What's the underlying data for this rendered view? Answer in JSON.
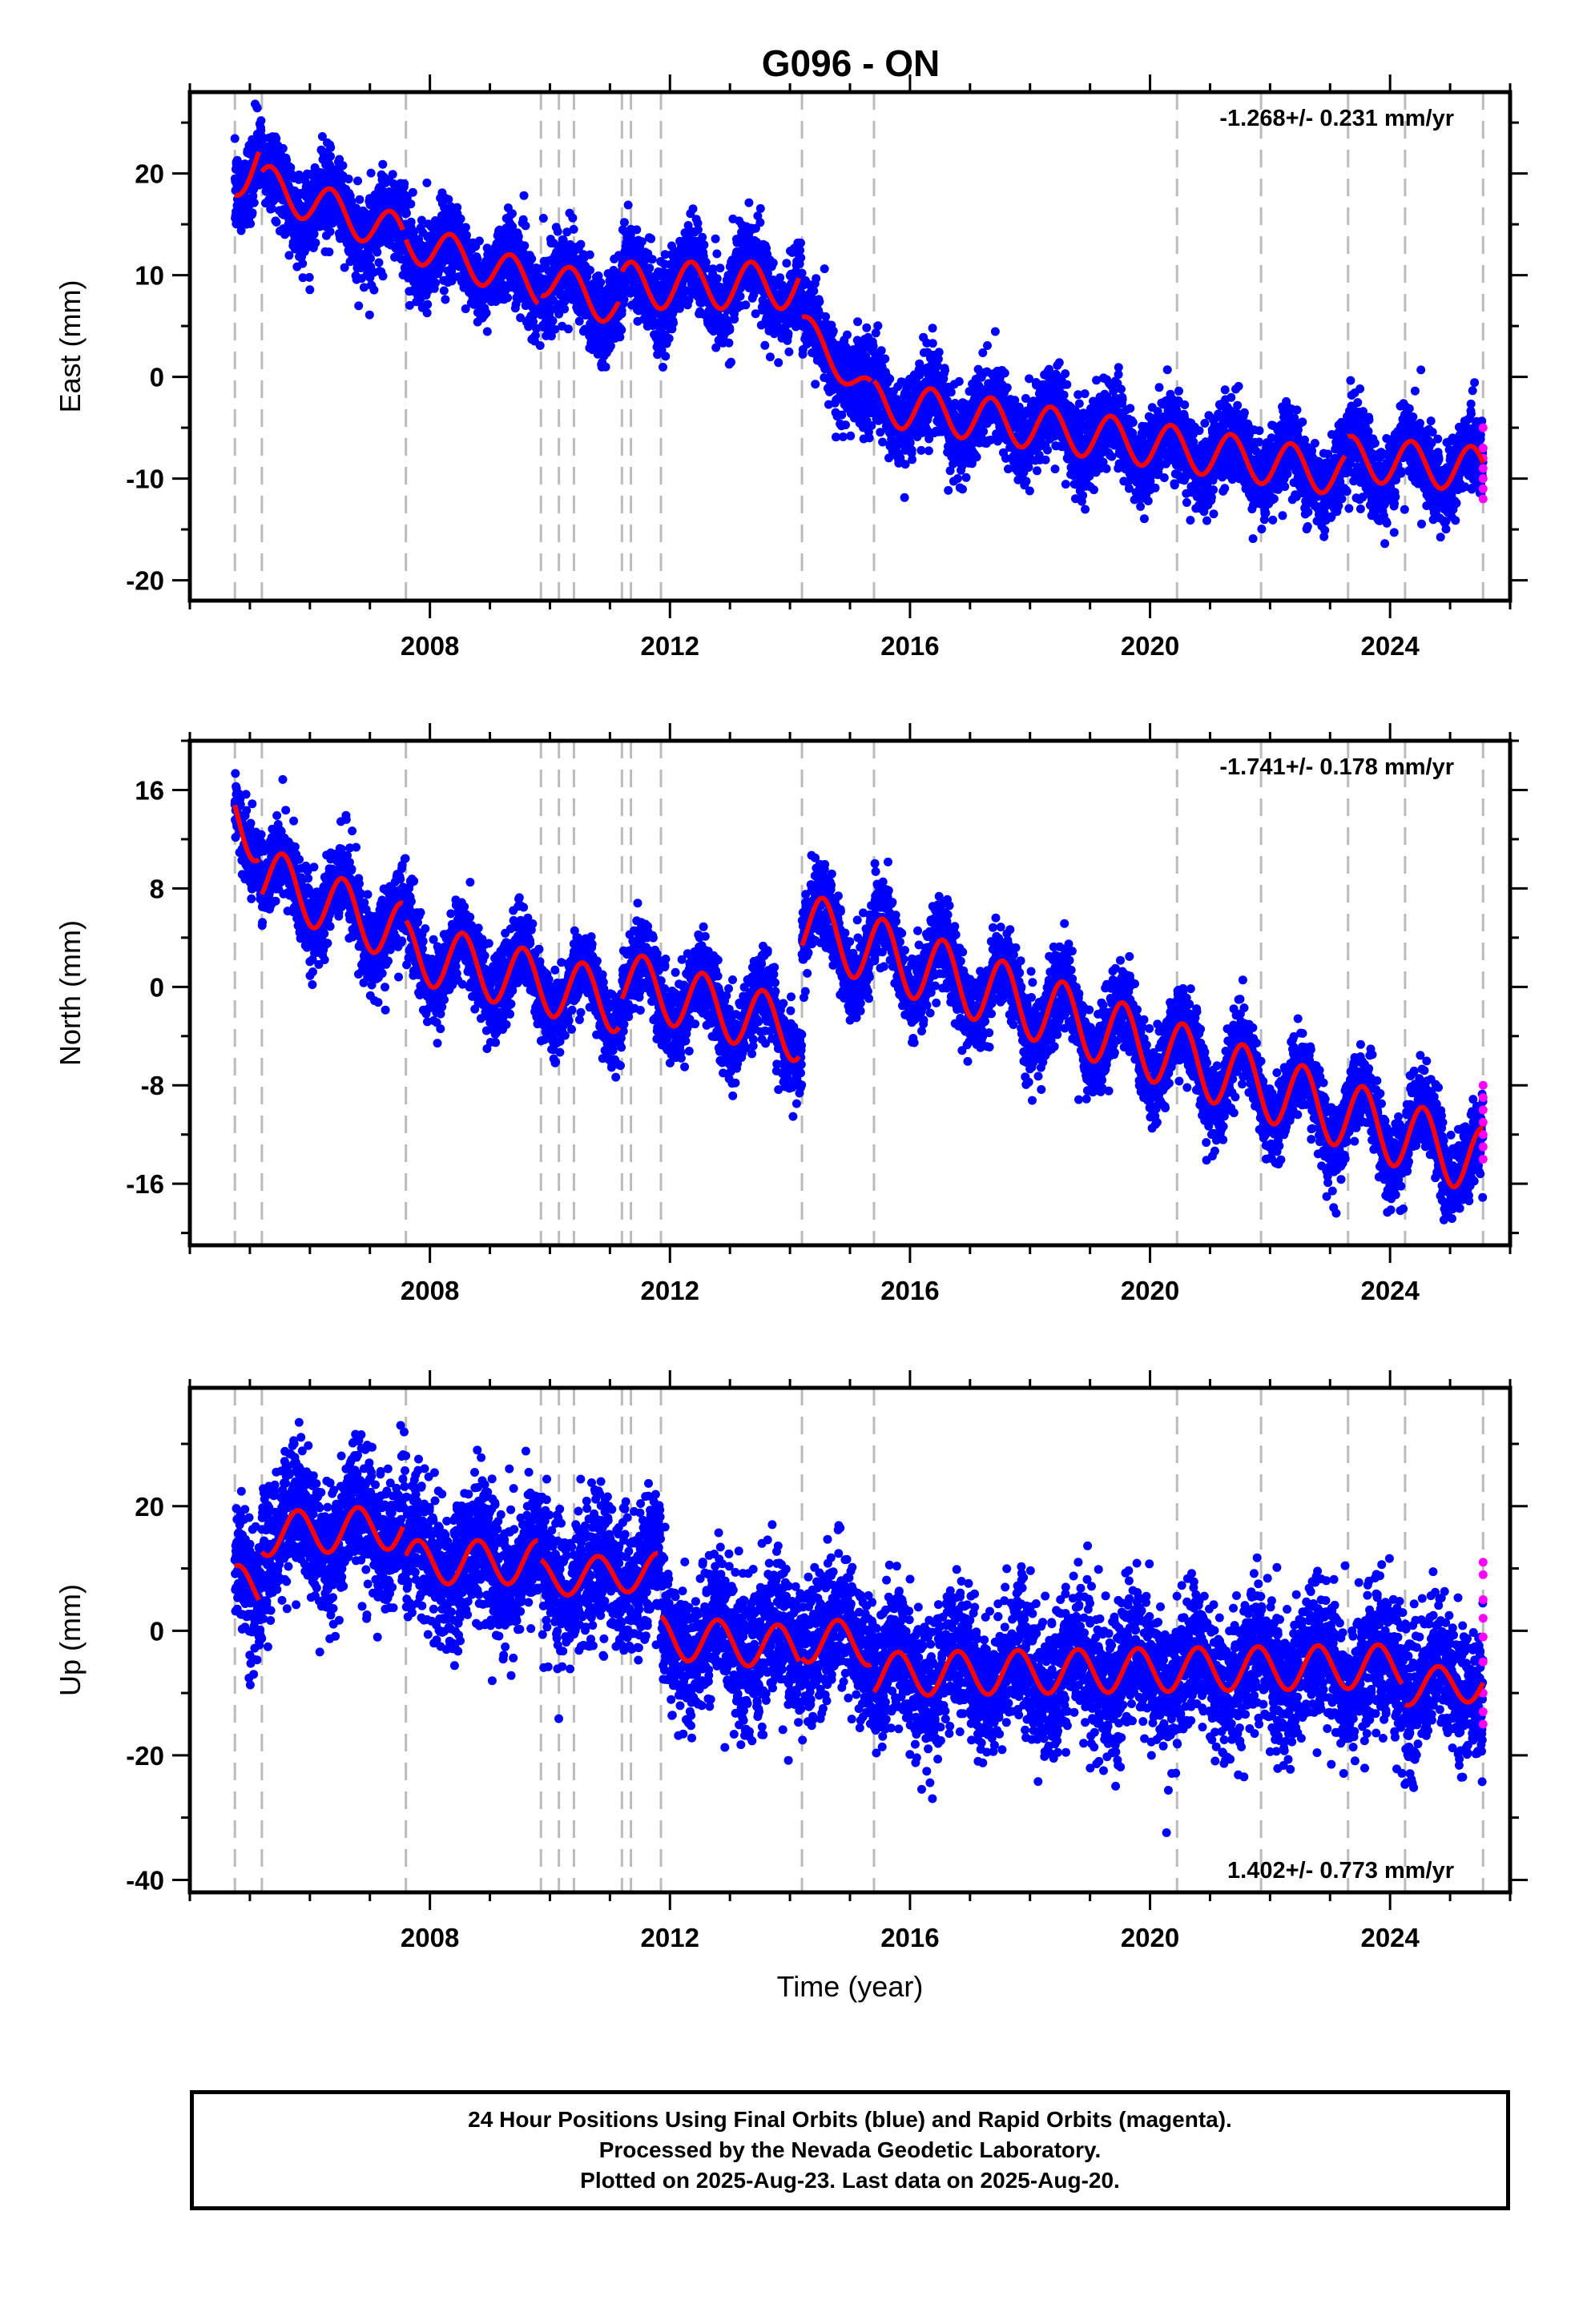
{
  "title": "G096 - ON",
  "colors": {
    "final_orbits": "#0000ff",
    "rapid_orbits": "#ff00ff",
    "model": "#ff0000",
    "event_lines": "#bbbbbb"
  },
  "chart_data": [
    {
      "type": "scatter",
      "component": "east",
      "ylabel": "East (mm)",
      "xlabel": "",
      "xlim": [
        2004.0,
        2026.0
      ],
      "ylim": [
        -22,
        28
      ],
      "xticks": [
        2008,
        2012,
        2016,
        2020,
        2024
      ],
      "yticks": [
        -20,
        -10,
        0,
        10,
        20
      ],
      "rate_label": "-1.268+/- 0.231 mm/yr",
      "rate_position": "top-right",
      "event_lines": [
        2004.75,
        2005.2,
        2007.6,
        2009.85,
        2010.15,
        2010.4,
        2011.2,
        2011.35,
        2011.85,
        2014.2,
        2015.4,
        2020.45,
        2021.85,
        2023.3,
        2024.25,
        2025.55
      ],
      "model": {
        "segments": [
          {
            "t0": 2004.75,
            "t1": 2005.15,
            "offset": 19.5,
            "trend": 5.0,
            "amp": 2.0,
            "phase": 0.1
          },
          {
            "t0": 2005.2,
            "t1": 2007.55,
            "offset": 19.0,
            "trend": -2.2,
            "amp": 2.0,
            "phase": 0.1
          },
          {
            "t0": 2007.6,
            "t1": 2009.8,
            "offset": 13.5,
            "trend": -2.0,
            "amp": 2.0,
            "phase": 0.1
          },
          {
            "t0": 2009.85,
            "t1": 2011.15,
            "offset": 10.0,
            "trend": -2.5,
            "amp": 2.0,
            "phase": 0.1
          },
          {
            "t0": 2011.2,
            "t1": 2014.15,
            "offset": 9.0,
            "trend": 0.0,
            "amp": 2.3,
            "phase": 0.1
          },
          {
            "t0": 2014.2,
            "t1": 2015.35,
            "offset": 5.0,
            "trend": -6.0,
            "amp": 1.5,
            "phase": 0.1
          },
          {
            "t0": 2015.4,
            "t1": 2023.25,
            "offset": -2.5,
            "trend": -0.9,
            "amp": 2.2,
            "phase": 0.1
          },
          {
            "t0": 2023.3,
            "t1": 2025.55,
            "offset": -8.0,
            "trend": -0.5,
            "amp": 2.2,
            "phase": 0.1
          }
        ]
      },
      "scatter_noise_mm": 2.0,
      "scatter_outlier_fraction": 0.01,
      "rapid_points": {
        "t": 2025.55,
        "values": [
          -5,
          -7,
          -8,
          -9,
          -10,
          -11,
          -12
        ]
      }
    },
    {
      "type": "scatter",
      "component": "north",
      "ylabel": "North (mm)",
      "xlabel": "",
      "xlim": [
        2004.0,
        2026.0
      ],
      "ylim": [
        -21,
        20
      ],
      "xticks": [
        2008,
        2012,
        2016,
        2020,
        2024
      ],
      "yticks": [
        -16,
        -8,
        0,
        8,
        16
      ],
      "rate_label": "-1.741+/- 0.178 mm/yr",
      "rate_position": "top-right",
      "event_lines": [
        2004.75,
        2005.2,
        2007.6,
        2009.85,
        2010.15,
        2010.4,
        2011.2,
        2011.35,
        2011.85,
        2014.2,
        2015.4,
        2020.45,
        2021.85,
        2023.3,
        2024.25,
        2025.55
      ],
      "model": {
        "segments": [
          {
            "t0": 2004.75,
            "t1": 2005.15,
            "offset": 14.0,
            "trend": -4.0,
            "amp": 2.5,
            "phase": 0.3
          },
          {
            "t0": 2005.2,
            "t1": 2007.55,
            "offset": 9.0,
            "trend": -2.0,
            "amp": 2.5,
            "phase": 0.3
          },
          {
            "t0": 2007.6,
            "t1": 2011.15,
            "offset": 3.0,
            "trend": -1.2,
            "amp": 2.5,
            "phase": 0.3
          },
          {
            "t0": 2011.2,
            "t1": 2014.15,
            "offset": 0.5,
            "trend": -1.4,
            "amp": 2.5,
            "phase": 0.3
          },
          {
            "t0": 2014.2,
            "t1": 2025.55,
            "offset": 5.0,
            "trend": -1.7,
            "amp": 2.8,
            "phase": 0.3
          }
        ]
      },
      "scatter_noise_mm": 1.6,
      "scatter_outlier_fraction": 0.01,
      "rapid_points": {
        "t": 2025.55,
        "values": [
          -8,
          -9,
          -10,
          -11,
          -12,
          -13,
          -14
        ]
      }
    },
    {
      "type": "scatter",
      "component": "up",
      "ylabel": "Up (mm)",
      "xlabel": "Time (year)",
      "xlim": [
        2004.0,
        2026.0
      ],
      "ylim": [
        -42,
        39
      ],
      "xticks": [
        2008,
        2012,
        2016,
        2020,
        2024
      ],
      "yticks": [
        -40,
        -20,
        0,
        20
      ],
      "rate_label": "1.402+/- 0.773 mm/yr",
      "rate_position": "bottom-right",
      "event_lines": [
        2004.75,
        2005.2,
        2007.6,
        2009.85,
        2010.15,
        2010.4,
        2011.2,
        2011.35,
        2011.85,
        2014.2,
        2015.4,
        2020.45,
        2021.85,
        2023.3,
        2024.25,
        2025.55
      ],
      "model": {
        "segments": [
          {
            "t0": 2004.75,
            "t1": 2005.15,
            "offset": 7.0,
            "trend": 0.0,
            "amp": 3.5,
            "phase": 0.55
          },
          {
            "t0": 2005.2,
            "t1": 2007.55,
            "offset": 15.5,
            "trend": 0.5,
            "amp": 3.5,
            "phase": 0.55
          },
          {
            "t0": 2007.6,
            "t1": 2009.8,
            "offset": 11.0,
            "trend": 0.0,
            "amp": 3.5,
            "phase": 0.55
          },
          {
            "t0": 2009.85,
            "t1": 2011.8,
            "offset": 8.5,
            "trend": 0.5,
            "amp": 3.0,
            "phase": 0.55
          },
          {
            "t0": 2011.85,
            "t1": 2014.15,
            "offset": -1.0,
            "trend": -0.8,
            "amp": 3.5,
            "phase": 0.55
          },
          {
            "t0": 2014.2,
            "t1": 2015.35,
            "offset": -1.5,
            "trend": -0.5,
            "amp": 3.5,
            "phase": 0.55
          },
          {
            "t0": 2015.4,
            "t1": 2024.2,
            "offset": -7.0,
            "trend": 0.15,
            "amp": 3.5,
            "phase": 0.55
          },
          {
            "t0": 2024.25,
            "t1": 2025.55,
            "offset": -9.0,
            "trend": 0.5,
            "amp": 3.0,
            "phase": 0.55
          }
        ]
      },
      "scatter_noise_mm": 5.5,
      "scatter_outlier_fraction": 0.01,
      "rapid_points": {
        "t": 2025.55,
        "values": [
          11,
          9,
          5,
          2,
          -1,
          -5,
          -10,
          -13,
          -15
        ]
      }
    }
  ],
  "footer": {
    "line1": "24 Hour Positions Using Final Orbits (blue) and Rapid Orbits (magenta).",
    "line2": "Processed by the Nevada Geodetic Laboratory.",
    "line3": "Plotted on 2025-Aug-23. Last data on 2025-Aug-20."
  }
}
